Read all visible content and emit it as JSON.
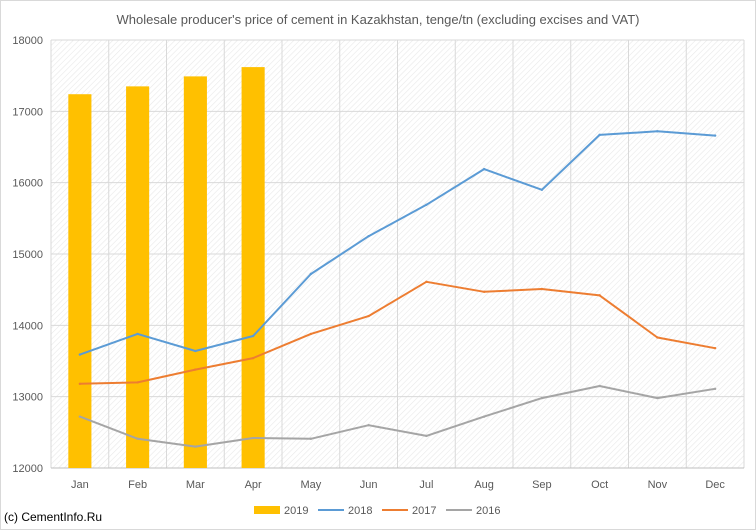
{
  "chart_data": {
    "type": "bar+line",
    "title": "Wholesale producer's price of cement in Kazakhstan, tenge/tn (excluding excises and VAT)",
    "xlabel": "",
    "ylabel": "",
    "categories": [
      "Jan",
      "Feb",
      "Mar",
      "Apr",
      "May",
      "Jun",
      "Jul",
      "Aug",
      "Sep",
      "Oct",
      "Nov",
      "Dec"
    ],
    "ylim": [
      12000,
      18000
    ],
    "yticks": [
      "12000",
      "13000",
      "14000",
      "15000",
      "16000",
      "17000",
      "18000"
    ],
    "grid": true,
    "legend_position": "bottom",
    "series": [
      {
        "name": "2019",
        "kind": "bar",
        "color": "#FFC000",
        "values": [
          17240,
          17350,
          17490,
          17620,
          null,
          null,
          null,
          null,
          null,
          null,
          null,
          null
        ]
      },
      {
        "name": "2018",
        "kind": "line",
        "color": "#5B9BD5",
        "values": [
          13590,
          13880,
          13640,
          13850,
          14720,
          15250,
          15690,
          16190,
          15900,
          16670,
          16720,
          16660
        ]
      },
      {
        "name": "2017",
        "kind": "line",
        "color": "#ED7D31",
        "values": [
          13180,
          13200,
          13380,
          13540,
          13880,
          14130,
          14610,
          14470,
          14510,
          14420,
          13830,
          13680
        ]
      },
      {
        "name": "2016",
        "kind": "line",
        "color": "#A5A5A5",
        "values": [
          12720,
          12410,
          12300,
          12420,
          12410,
          12600,
          12450,
          12720,
          12980,
          13150,
          12980,
          13110
        ]
      }
    ]
  },
  "credit": "(c) CementInfo.Ru"
}
